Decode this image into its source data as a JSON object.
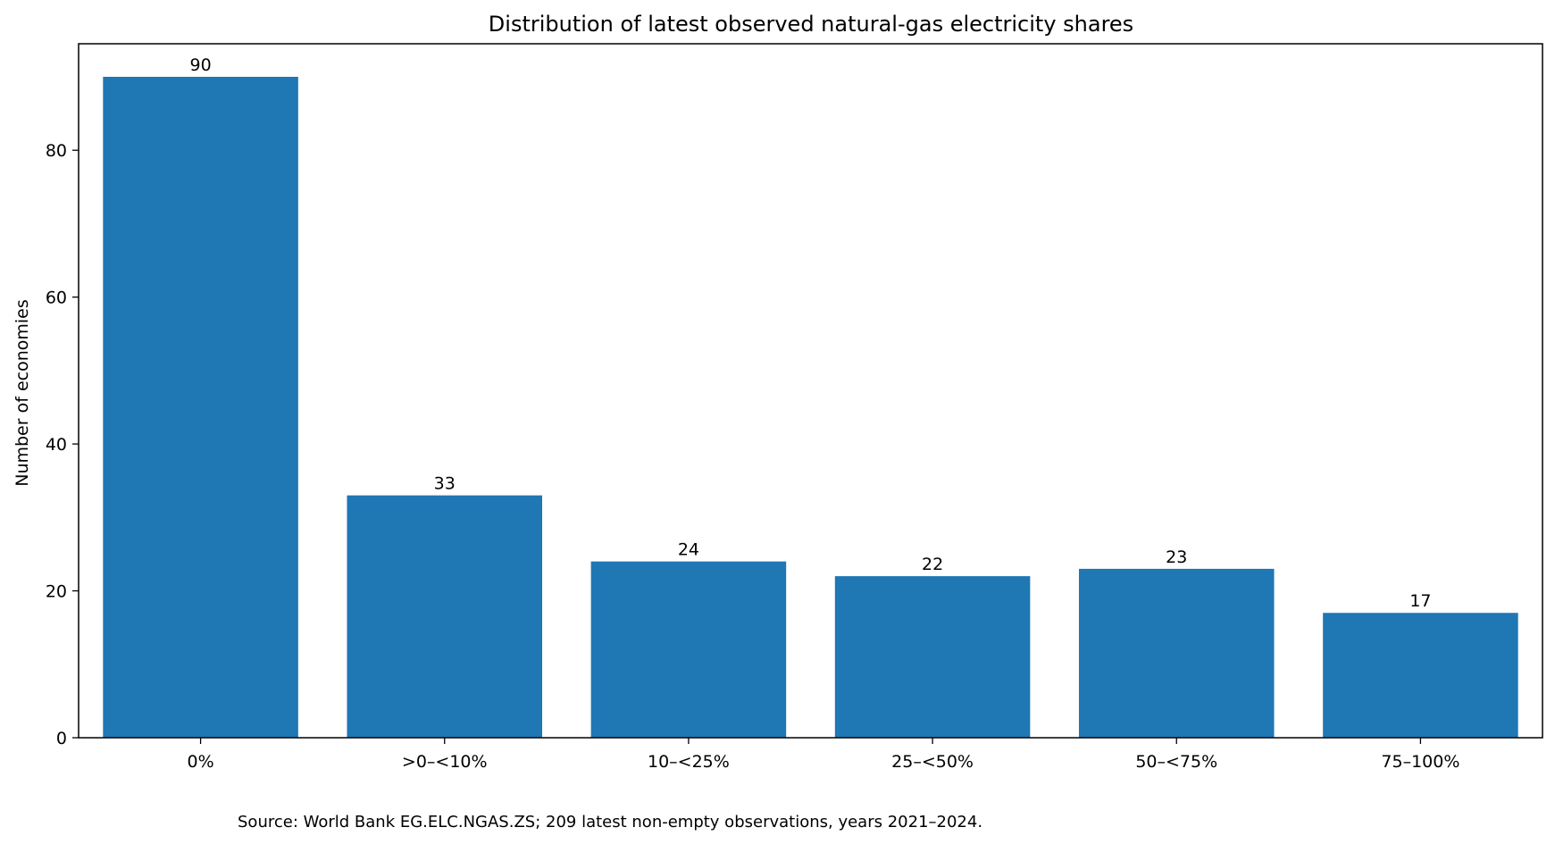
{
  "chart_data": {
    "type": "bar",
    "title": "Distribution of latest observed natural-gas electricity shares",
    "xlabel": "",
    "ylabel": "Number of economies",
    "categories": [
      "0%",
      ">0–<10%",
      "10–<25%",
      "25–<50%",
      "50–<75%",
      "75–100%"
    ],
    "values": [
      90,
      33,
      24,
      22,
      23,
      17
    ],
    "data_labels": [
      "90",
      "33",
      "24",
      "22",
      "23",
      "17"
    ],
    "ylim": [
      0,
      94.5
    ],
    "yticks": [
      0,
      20,
      40,
      60,
      80
    ],
    "ytick_labels": [
      "0",
      "20",
      "40",
      "60",
      "80"
    ],
    "grid": false,
    "legend": "none",
    "bar_color": "#1f77b4",
    "axis_color": "#000000"
  },
  "footnote": "Source: World Bank EG.ELC.NGAS.ZS; 209 latest non-empty observations, years 2021–2024."
}
